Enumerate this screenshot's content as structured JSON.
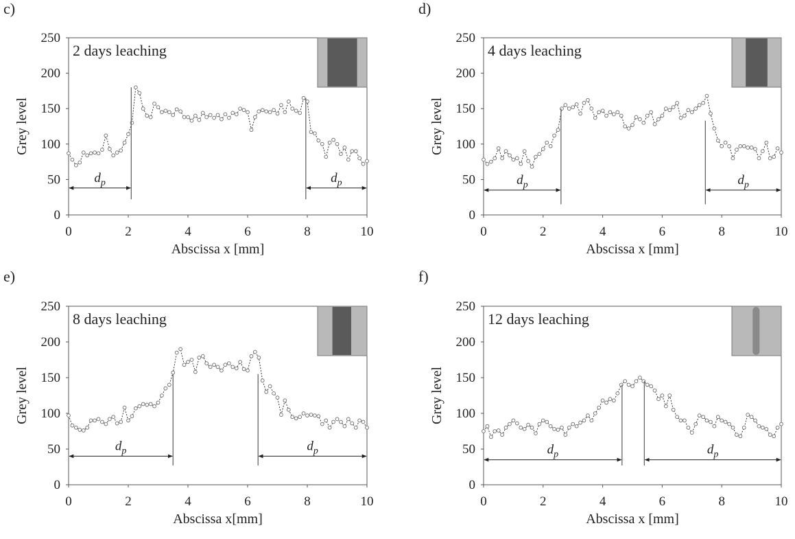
{
  "chart_data": [
    {
      "type": "line",
      "panel": "c)",
      "title": "2 days leaching",
      "xlabel": "Abscissa x [mm]",
      "ylabel": "Grey level",
      "xlim": [
        0,
        10
      ],
      "ylim": [
        0,
        250
      ],
      "xticks": [
        0,
        2,
        4,
        6,
        8,
        10
      ],
      "yticks": [
        0,
        50,
        100,
        150,
        200,
        250
      ],
      "x": [
        0,
        0.125,
        0.25,
        0.375,
        0.5,
        0.625,
        0.75,
        0.875,
        1,
        1.125,
        1.25,
        1.375,
        1.5,
        1.625,
        1.75,
        1.875,
        2,
        2.125,
        2.25,
        2.375,
        2.5,
        2.625,
        2.75,
        2.875,
        3,
        3.125,
        3.25,
        3.375,
        3.5,
        3.625,
        3.75,
        3.875,
        4,
        4.125,
        4.25,
        4.375,
        4.5,
        4.625,
        4.75,
        4.875,
        5,
        5.125,
        5.25,
        5.375,
        5.5,
        5.625,
        5.75,
        5.875,
        6,
        6.125,
        6.25,
        6.375,
        6.5,
        6.625,
        6.75,
        6.875,
        7,
        7.125,
        7.25,
        7.375,
        7.5,
        7.625,
        7.75,
        7.875,
        8,
        8.125,
        8.25,
        8.375,
        8.5,
        8.625,
        8.75,
        8.875,
        9,
        9.125,
        9.25,
        9.375,
        9.5,
        9.625,
        9.75,
        9.875,
        10
      ],
      "series": [
        {
          "color": "#777777",
          "values": [
            87,
            78,
            70,
            74,
            88,
            84,
            87,
            88,
            87,
            92,
            112,
            93,
            84,
            88,
            91,
            102,
            114,
            130,
            180,
            172,
            150,
            140,
            138,
            157,
            152,
            145,
            147,
            145,
            141,
            149,
            146,
            138,
            138,
            133,
            140,
            134,
            144,
            138,
            141,
            137,
            141,
            135,
            142,
            137,
            144,
            142,
            150,
            148,
            145,
            120,
            138,
            146,
            148,
            146,
            145,
            148,
            143,
            155,
            145,
            160,
            150,
            147,
            144,
            165,
            160,
            117,
            115,
            105,
            100,
            82,
            102,
            106,
            100,
            86,
            95,
            78,
            90,
            90,
            80,
            72,
            76
          ]
        }
      ],
      "boundaries": [
        {
          "x": 2.1,
          "y_top": 180,
          "y_bottom": 22
        },
        {
          "x": 7.95,
          "y_top": 165,
          "y_bottom": 22
        }
      ],
      "arrow_y": 38,
      "annotation": "d",
      "annotation_sub": "p"
    },
    {
      "type": "line",
      "panel": "d)",
      "title": "4 days leaching",
      "xlabel": "Abscissa x [mm]",
      "ylabel": "Grey level",
      "xlim": [
        0,
        10
      ],
      "ylim": [
        0,
        250
      ],
      "xticks": [
        0,
        2,
        4,
        6,
        8,
        10
      ],
      "yticks": [
        0,
        50,
        100,
        150,
        200,
        250
      ],
      "x": [
        0,
        0.125,
        0.25,
        0.375,
        0.5,
        0.625,
        0.75,
        0.875,
        1,
        1.125,
        1.25,
        1.375,
        1.5,
        1.625,
        1.75,
        1.875,
        2,
        2.125,
        2.25,
        2.375,
        2.5,
        2.625,
        2.75,
        2.875,
        3,
        3.125,
        3.25,
        3.375,
        3.5,
        3.625,
        3.75,
        3.875,
        4,
        4.125,
        4.25,
        4.375,
        4.5,
        4.625,
        4.75,
        4.875,
        5,
        5.125,
        5.25,
        5.375,
        5.5,
        5.625,
        5.75,
        5.875,
        6,
        6.125,
        6.25,
        6.375,
        6.5,
        6.625,
        6.75,
        6.875,
        7,
        7.125,
        7.25,
        7.375,
        7.5,
        7.625,
        7.75,
        7.875,
        8,
        8.125,
        8.25,
        8.375,
        8.5,
        8.625,
        8.75,
        8.875,
        9,
        9.125,
        9.25,
        9.375,
        9.5,
        9.625,
        9.75,
        9.875,
        10
      ],
      "series": [
        {
          "color": "#777777",
          "values": [
            78,
            72,
            75,
            80,
            94,
            80,
            90,
            84,
            78,
            80,
            72,
            90,
            76,
            68,
            82,
            86,
            93,
            102,
            97,
            112,
            120,
            150,
            155,
            150,
            152,
            156,
            143,
            158,
            162,
            150,
            137,
            145,
            147,
            140,
            145,
            142,
            145,
            140,
            125,
            122,
            127,
            138,
            135,
            130,
            140,
            145,
            128,
            135,
            140,
            150,
            148,
            152,
            158,
            137,
            140,
            148,
            145,
            150,
            155,
            158,
            168,
            143,
            122,
            105,
            97,
            102,
            97,
            80,
            92,
            97,
            97,
            95,
            95,
            93,
            80,
            90,
            102,
            80,
            82,
            94,
            88
          ]
        }
      ],
      "boundaries": [
        {
          "x": 2.6,
          "y_top": 150,
          "y_bottom": 15
        },
        {
          "x": 7.45,
          "y_top": 133,
          "y_bottom": 15
        }
      ],
      "arrow_y": 35,
      "annotation": "d",
      "annotation_sub": "p"
    },
    {
      "type": "line",
      "panel": "e)",
      "title": "8 days leaching",
      "xlabel": "Abscissa x[mm]",
      "ylabel": "Grey level",
      "xlim": [
        0,
        10
      ],
      "ylim": [
        0,
        250
      ],
      "xticks": [
        0,
        2,
        4,
        6,
        8,
        10
      ],
      "yticks": [
        0,
        50,
        100,
        150,
        200,
        250
      ],
      "x": [
        0,
        0.125,
        0.25,
        0.375,
        0.5,
        0.625,
        0.75,
        0.875,
        1,
        1.125,
        1.25,
        1.375,
        1.5,
        1.625,
        1.75,
        1.875,
        2,
        2.125,
        2.25,
        2.375,
        2.5,
        2.625,
        2.75,
        2.875,
        3,
        3.125,
        3.25,
        3.375,
        3.5,
        3.625,
        3.75,
        3.875,
        4,
        4.125,
        4.25,
        4.375,
        4.5,
        4.625,
        4.75,
        4.875,
        5,
        5.125,
        5.25,
        5.375,
        5.5,
        5.625,
        5.75,
        5.875,
        6,
        6.125,
        6.25,
        6.375,
        6.5,
        6.625,
        6.75,
        6.875,
        7,
        7.125,
        7.25,
        7.375,
        7.5,
        7.625,
        7.75,
        7.875,
        8,
        8.125,
        8.25,
        8.375,
        8.5,
        8.625,
        8.75,
        8.875,
        9,
        9.125,
        9.25,
        9.375,
        9.5,
        9.625,
        9.75,
        9.875,
        10
      ],
      "series": [
        {
          "color": "#777777",
          "values": [
            97,
            83,
            80,
            77,
            76,
            80,
            90,
            90,
            92,
            88,
            85,
            92,
            95,
            86,
            88,
            108,
            90,
            96,
            107,
            110,
            113,
            112,
            113,
            110,
            115,
            125,
            135,
            140,
            157,
            185,
            190,
            168,
            172,
            175,
            158,
            178,
            180,
            170,
            165,
            168,
            165,
            160,
            168,
            170,
            165,
            163,
            172,
            162,
            160,
            180,
            186,
            178,
            146,
            130,
            138,
            128,
            122,
            98,
            118,
            105,
            95,
            93,
            95,
            100,
            97,
            98,
            97,
            96,
            85,
            90,
            80,
            88,
            92,
            88,
            82,
            92,
            86,
            80,
            90,
            88,
            80
          ]
        }
      ],
      "boundaries": [
        {
          "x": 3.5,
          "y_top": 155,
          "y_bottom": 27
        },
        {
          "x": 6.35,
          "y_top": 155,
          "y_bottom": 27
        }
      ],
      "arrow_y": 40,
      "annotation": "d",
      "annotation_sub": "p"
    },
    {
      "type": "line",
      "panel": "f)",
      "title": "12 days leaching",
      "xlabel": "Abscissa x [mm]",
      "ylabel": "Grey level",
      "xlim": [
        0,
        10
      ],
      "ylim": [
        0,
        250
      ],
      "xticks": [
        0,
        2,
        4,
        6,
        8,
        10
      ],
      "yticks": [
        0,
        50,
        100,
        150,
        200,
        250
      ],
      "x": [
        0,
        0.125,
        0.25,
        0.375,
        0.5,
        0.625,
        0.75,
        0.875,
        1,
        1.125,
        1.25,
        1.375,
        1.5,
        1.625,
        1.75,
        1.875,
        2,
        2.125,
        2.25,
        2.375,
        2.5,
        2.625,
        2.75,
        2.875,
        3,
        3.125,
        3.25,
        3.375,
        3.5,
        3.625,
        3.75,
        3.875,
        4,
        4.125,
        4.25,
        4.375,
        4.5,
        4.625,
        4.75,
        4.875,
        5,
        5.125,
        5.25,
        5.375,
        5.5,
        5.625,
        5.75,
        5.875,
        6,
        6.125,
        6.25,
        6.375,
        6.5,
        6.625,
        6.75,
        6.875,
        7,
        7.125,
        7.25,
        7.375,
        7.5,
        7.625,
        7.75,
        7.875,
        8,
        8.125,
        8.25,
        8.375,
        8.5,
        8.625,
        8.75,
        8.875,
        9,
        9.125,
        9.25,
        9.375,
        9.5,
        9.625,
        9.75,
        9.875,
        10
      ],
      "series": [
        {
          "color": "#777777",
          "values": [
            75,
            82,
            67,
            75,
            76,
            70,
            80,
            85,
            90,
            86,
            80,
            78,
            84,
            80,
            72,
            85,
            90,
            88,
            82,
            78,
            77,
            80,
            70,
            80,
            85,
            82,
            87,
            90,
            97,
            90,
            100,
            108,
            118,
            115,
            120,
            118,
            128,
            140,
            145,
            140,
            138,
            145,
            150,
            145,
            140,
            138,
            132,
            120,
            125,
            110,
            125,
            105,
            95,
            90,
            90,
            80,
            73,
            85,
            97,
            95,
            90,
            88,
            82,
            95,
            90,
            88,
            85,
            80,
            70,
            68,
            80,
            98,
            95,
            90,
            82,
            80,
            78,
            70,
            68,
            80,
            85
          ]
        }
      ],
      "boundaries": [
        {
          "x": 4.65,
          "y_top": 140,
          "y_bottom": 27
        },
        {
          "x": 5.4,
          "y_top": 145,
          "y_bottom": 27
        }
      ],
      "arrow_y": 35,
      "annotation": "d",
      "annotation_sub": "p"
    }
  ]
}
